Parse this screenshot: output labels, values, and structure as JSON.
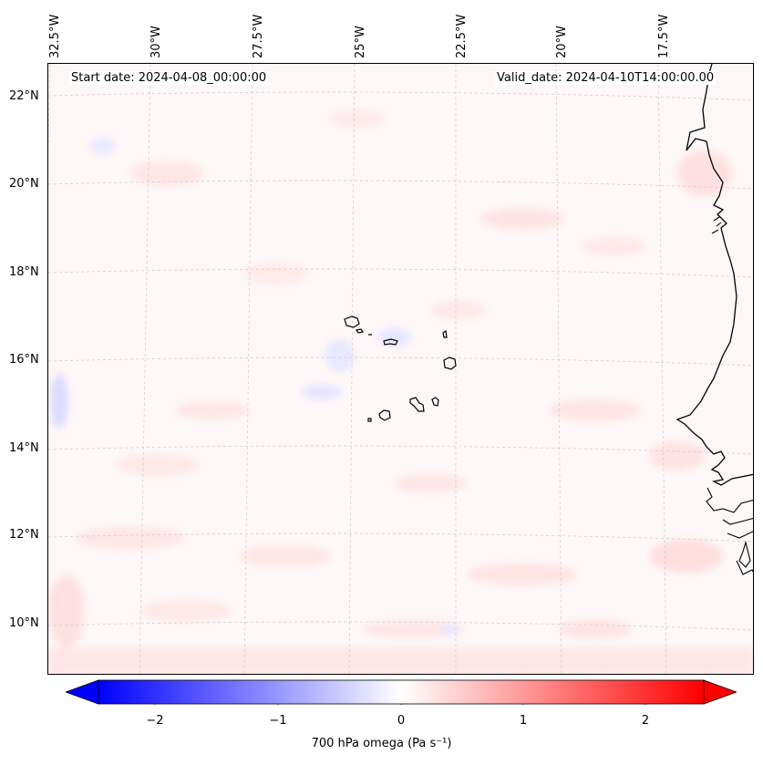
{
  "header": {
    "start_date": "Start date: 2024-04-08_00:00:00",
    "valid_date": "Valid_date: 2024-04-10T14:00:00.00"
  },
  "axes": {
    "longitude_labels": [
      "32.5°W",
      "30°W",
      "27.5°W",
      "25°W",
      "22.5°W",
      "20°W",
      "17.5°W"
    ],
    "latitude_labels": [
      "22°N",
      "20°N",
      "18°N",
      "16°N",
      "14°N",
      "12°N",
      "10°N"
    ]
  },
  "colorbar": {
    "title": "700 hPa omega (Pa s⁻¹)",
    "ticks": [
      "−2",
      "−1",
      "0",
      "1",
      "2"
    ],
    "range": [
      -2.6,
      2.6
    ],
    "colormap": "bwr",
    "extend": "both",
    "colors": {
      "low": "#0000ff",
      "mid": "#ffffff",
      "high": "#ff0000"
    }
  },
  "map": {
    "field": "700 hPa omega",
    "gridlines": true,
    "coastline_color": "#000000"
  }
}
